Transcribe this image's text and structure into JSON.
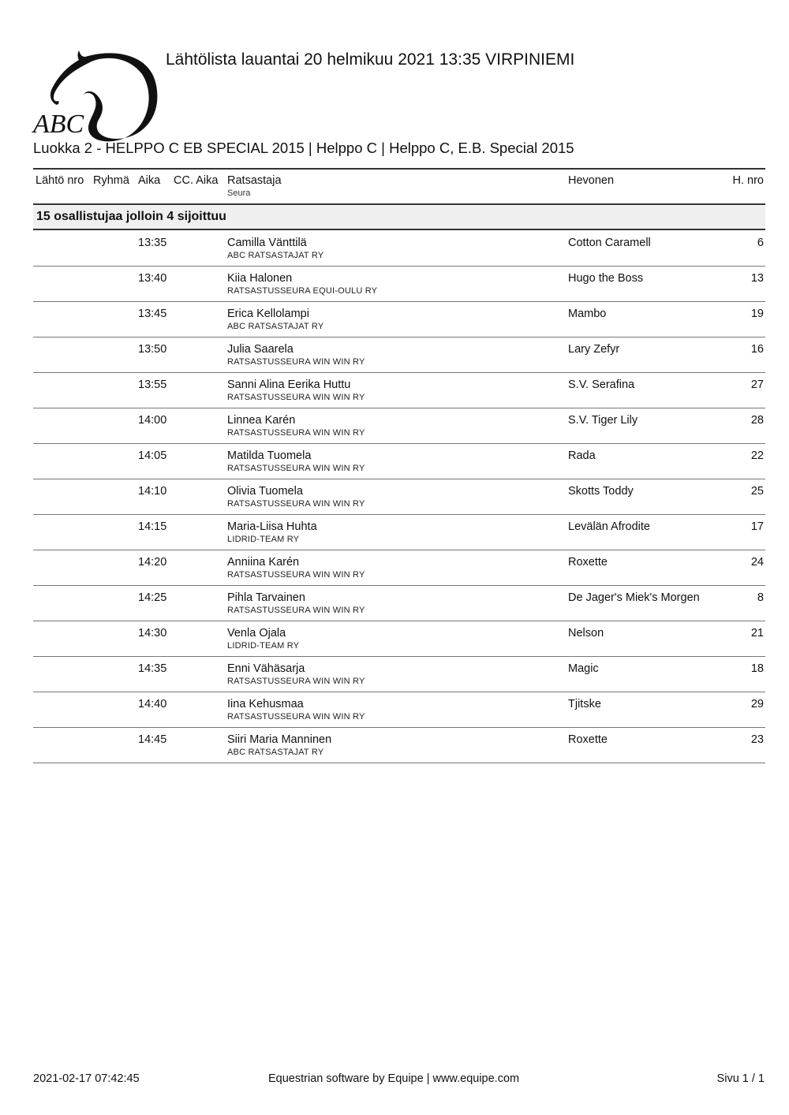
{
  "logo": {
    "text": "ABC"
  },
  "title": "Lähtölista lauantai 20 helmikuu 2021 13:35 VIRPINIEMI",
  "subtitle": "Luokka 2 - HELPPO C EB SPECIAL 2015 | Helppo C | Helppo C, E.B. Special 2015",
  "columns": {
    "start_no": "Lähtö nro",
    "group": "Ryhmä",
    "time": "Aika",
    "cc_time": "CC. Aika",
    "rider": "Ratsastaja",
    "club": "Seura",
    "horse": "Hevonen",
    "horse_no": "H. nro"
  },
  "group_heading": "15 osallistujaa jolloin 4 sijoittuu",
  "rows": [
    {
      "time": "13:35",
      "rider": "Camilla Vänttilä",
      "club": "ABC RATSASTAJAT RY",
      "horse": "Cotton Caramell",
      "no": "6"
    },
    {
      "time": "13:40",
      "rider": "Kiia Halonen",
      "club": "RATSASTUSSEURA EQUI-OULU RY",
      "horse": "Hugo the Boss",
      "no": "13"
    },
    {
      "time": "13:45",
      "rider": "Erica Kellolampi",
      "club": "ABC RATSASTAJAT RY",
      "horse": "Mambo",
      "no": "19"
    },
    {
      "time": "13:50",
      "rider": "Julia Saarela",
      "club": "RATSASTUSSEURA WIN WIN RY",
      "horse": "Lary Zefyr",
      "no": "16"
    },
    {
      "time": "13:55",
      "rider": "Sanni Alina Eerika Huttu",
      "club": "RATSASTUSSEURA WIN WIN RY",
      "horse": "S.V. Serafina",
      "no": "27"
    },
    {
      "time": "14:00",
      "rider": "Linnea Karén",
      "club": "RATSASTUSSEURA WIN WIN RY",
      "horse": "S.V. Tiger Lily",
      "no": "28"
    },
    {
      "time": "14:05",
      "rider": "Matilda Tuomela",
      "club": "RATSASTUSSEURA WIN WIN RY",
      "horse": "Rada",
      "no": "22"
    },
    {
      "time": "14:10",
      "rider": "Olivia Tuomela",
      "club": "RATSASTUSSEURA WIN WIN RY",
      "horse": "Skotts Toddy",
      "no": "25"
    },
    {
      "time": "14:15",
      "rider": "Maria-Liisa Huhta",
      "club": "LIDRID-TEAM RY",
      "horse": "Levälän Afrodite",
      "no": "17"
    },
    {
      "time": "14:20",
      "rider": "Anniina Karén",
      "club": "RATSASTUSSEURA WIN WIN RY",
      "horse": "Roxette",
      "no": "24"
    },
    {
      "time": "14:25",
      "rider": "Pihla Tarvainen",
      "club": "RATSASTUSSEURA WIN WIN RY",
      "horse": "De Jager's Miek's Morgen",
      "no": "8"
    },
    {
      "time": "14:30",
      "rider": "Venla Ojala",
      "club": "LIDRID-TEAM RY",
      "horse": "Nelson",
      "no": "21"
    },
    {
      "time": "14:35",
      "rider": "Enni Vähäsarja",
      "club": "RATSASTUSSEURA WIN WIN RY",
      "horse": "Magic",
      "no": "18"
    },
    {
      "time": "14:40",
      "rider": "Iina Kehusmaa",
      "club": "RATSASTUSSEURA WIN WIN RY",
      "horse": "Tjitske",
      "no": "29"
    },
    {
      "time": "14:45",
      "rider": "Siiri Maria Manninen",
      "club": "ABC RATSASTAJAT RY",
      "horse": "Roxette",
      "no": "23"
    }
  ],
  "footer": {
    "timestamp": "2021-02-17 07:42:45",
    "credit": "Equestrian software by Equipe | www.equipe.com",
    "page": "Sivu 1 / 1"
  }
}
